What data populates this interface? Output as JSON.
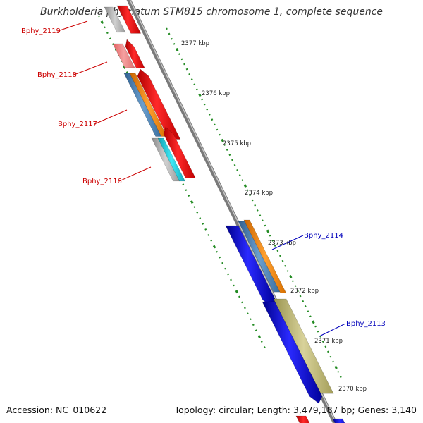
{
  "title": "Burkholderia phymatum STM815 chromosome 1, complete sequence",
  "footer": {
    "accession": "Accession: NC_010622",
    "topology": "Topology: circular; Length: 3,479,187 bp; Genes: 3,140"
  },
  "ticks": [
    "2377 kbp",
    "2376 kbp",
    "2375 kbp",
    "2374 kbp",
    "2373 kbp",
    "2372 kbp",
    "2371 kbp",
    "2370 kbp"
  ],
  "gene_labels": [
    {
      "name": "Bphy_2119",
      "strand": "reverse"
    },
    {
      "name": "Bphy_2118",
      "strand": "reverse"
    },
    {
      "name": "Bphy_2117",
      "strand": "reverse"
    },
    {
      "name": "Bphy_2116",
      "strand": "reverse"
    },
    {
      "name": "Bphy_2114",
      "strand": "forward"
    },
    {
      "name": "Bphy_2113",
      "strand": "forward"
    }
  ],
  "colors": {
    "forward_cds": "#0000ee",
    "reverse_cds": "#ee0000",
    "reverse_label": "#cc0000",
    "forward_label": "#0000bb",
    "backbone": "#888888",
    "ticks": "#228b22",
    "orange": "#ff8c1a",
    "steel": "#4f86b8",
    "cyan": "#19c8d8",
    "olive": "#bdb76b",
    "grey": "#a9a9a9",
    "pink": "#f08080"
  }
}
